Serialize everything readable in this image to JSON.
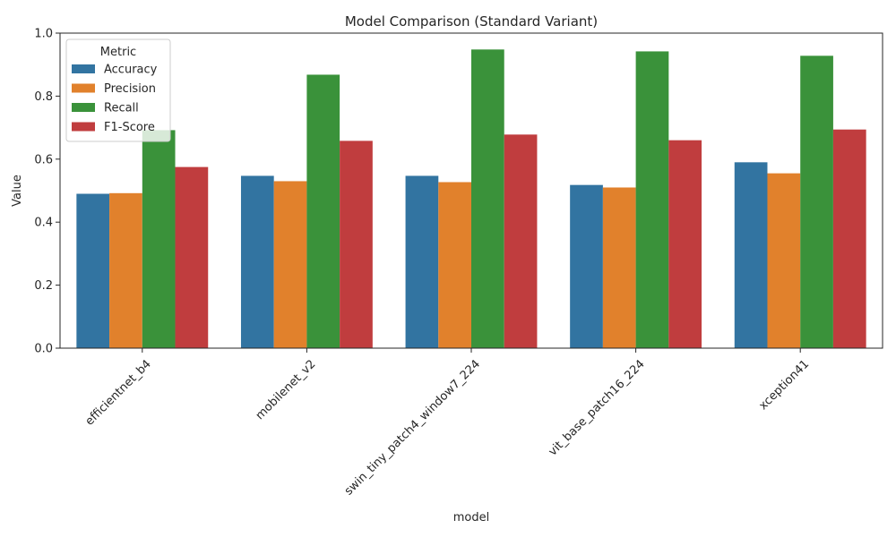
{
  "chart_data": {
    "type": "bar",
    "title": "Model Comparison (Standard Variant)",
    "xlabel": "model",
    "ylabel": "Value",
    "ylim": [
      0,
      1.0
    ],
    "yticks": [
      "0.0",
      "0.2",
      "0.4",
      "0.6",
      "0.8",
      "1.0"
    ],
    "categories": [
      "efficientnet_b4",
      "mobilenet_v2",
      "swin_tiny_patch4_window7_224",
      "vit_base_patch16_224",
      "xception41"
    ],
    "legend": {
      "title": "Metric",
      "placement": "top-left"
    },
    "grid": false,
    "series": [
      {
        "name": "Accuracy",
        "color": "#3274a1",
        "values": [
          0.49,
          0.547,
          0.547,
          0.518,
          0.59
        ]
      },
      {
        "name": "Precision",
        "color": "#e1812c",
        "values": [
          0.492,
          0.53,
          0.527,
          0.51,
          0.555
        ]
      },
      {
        "name": "Recall",
        "color": "#3a923a",
        "values": [
          0.692,
          0.868,
          0.948,
          0.942,
          0.928
        ]
      },
      {
        "name": "F1-Score",
        "color": "#c03d3e",
        "values": [
          0.575,
          0.658,
          0.678,
          0.66,
          0.694
        ]
      }
    ]
  }
}
